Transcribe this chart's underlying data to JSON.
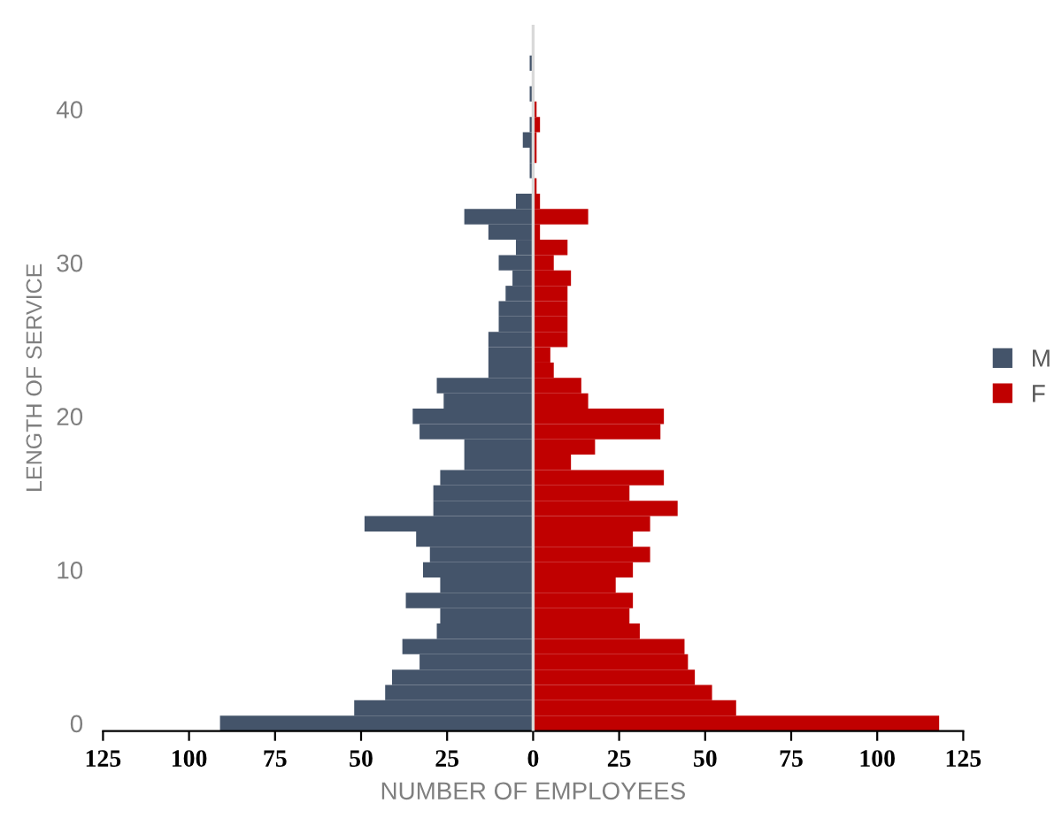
{
  "chart_data": {
    "type": "bar",
    "orientation": "horizontal",
    "xlabel": "NUMBER OF EMPLOYEES",
    "ylabel": "LENGTH OF SERVICE",
    "x": [
      0,
      1,
      2,
      3,
      4,
      5,
      6,
      7,
      8,
      9,
      10,
      11,
      12,
      13,
      14,
      15,
      16,
      17,
      18,
      19,
      20,
      21,
      22,
      23,
      24,
      25,
      26,
      27,
      28,
      29,
      30,
      31,
      32,
      33,
      34,
      35,
      36,
      37,
      38,
      39,
      40,
      41,
      42,
      43
    ],
    "series": [
      {
        "name": "M",
        "color": "#44546a",
        "values": [
          -91,
          -52,
          -43,
          -41,
          -33,
          -38,
          -28,
          -27,
          -37,
          -27,
          -32,
          -30,
          -34,
          -49,
          -29,
          -29,
          -27,
          -20,
          -20,
          -33,
          -35,
          -26,
          -28,
          -13,
          -13,
          -13,
          -10,
          -10,
          -8,
          -6,
          -10,
          -5,
          -13,
          -20,
          -5,
          0,
          -1,
          -1,
          -3,
          -1,
          0,
          -1,
          0,
          -1
        ]
      },
      {
        "name": "F",
        "color": "#c00000",
        "values": [
          118,
          59,
          52,
          47,
          45,
          44,
          31,
          28,
          29,
          24,
          29,
          34,
          29,
          34,
          42,
          28,
          38,
          11,
          18,
          37,
          38,
          16,
          14,
          6,
          5,
          10,
          10,
          10,
          10,
          11,
          6,
          10,
          2,
          16,
          2,
          1,
          0,
          1,
          1,
          2,
          1,
          0,
          0,
          0
        ]
      }
    ],
    "xlim": [
      -125,
      125
    ],
    "xticks": [
      {
        "value": -125,
        "label": "125"
      },
      {
        "value": -100,
        "label": "100"
      },
      {
        "value": -75,
        "label": "75"
      },
      {
        "value": -50,
        "label": "50"
      },
      {
        "value": -25,
        "label": "25"
      },
      0,
      25,
      50,
      75,
      100,
      125
    ],
    "ylim": [
      -0.5,
      45.5
    ],
    "yticks": [
      0,
      10,
      20,
      30,
      40
    ],
    "ref_lines": [
      {
        "axis": "x",
        "value": 0,
        "color": "#d9d9d9"
      }
    ],
    "stacked": true,
    "legend": "right",
    "grid": false
  }
}
